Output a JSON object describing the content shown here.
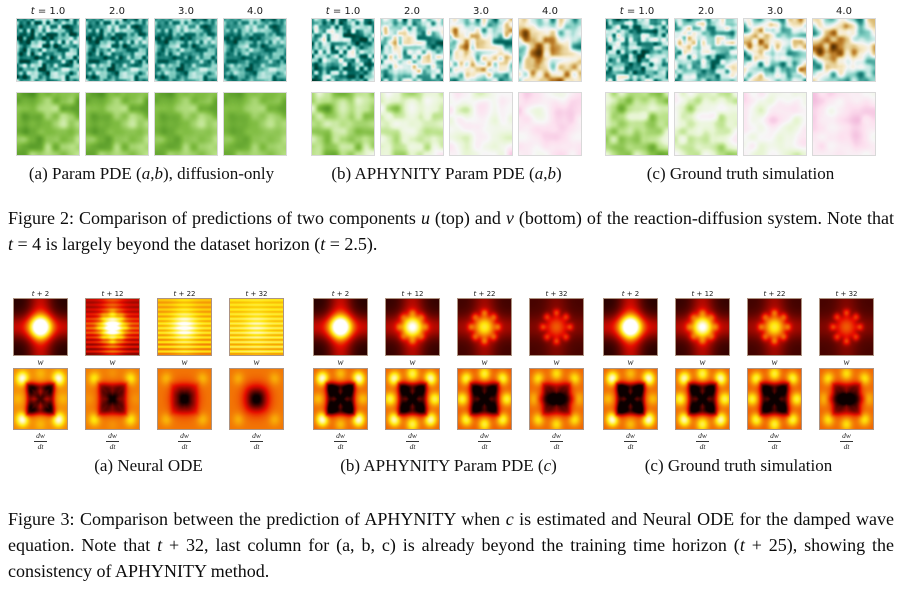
{
  "page": {
    "background": "#ffffff"
  },
  "colormaps": {
    "BrBG": [
      [
        0,
        "#543005"
      ],
      [
        0.1,
        "#8c510a"
      ],
      [
        0.2,
        "#bf812d"
      ],
      [
        0.3,
        "#dfc27d"
      ],
      [
        0.4,
        "#f6e8c3"
      ],
      [
        0.5,
        "#f5f5f5"
      ],
      [
        0.6,
        "#c7eae5"
      ],
      [
        0.7,
        "#80cdc1"
      ],
      [
        0.8,
        "#35978f"
      ],
      [
        0.9,
        "#01665e"
      ],
      [
        1,
        "#003c30"
      ]
    ],
    "PiYG": [
      [
        0,
        "#8e0152"
      ],
      [
        0.1,
        "#c51b7d"
      ],
      [
        0.2,
        "#de77ae"
      ],
      [
        0.3,
        "#f1b6da"
      ],
      [
        0.4,
        "#fde0ef"
      ],
      [
        0.5,
        "#f7f7f7"
      ],
      [
        0.6,
        "#e6f5d0"
      ],
      [
        0.7,
        "#b8e186"
      ],
      [
        0.8,
        "#7fbc41"
      ],
      [
        0.9,
        "#4d9221"
      ],
      [
        1,
        "#276419"
      ]
    ],
    "hot": [
      [
        0,
        "#0b0000"
      ],
      [
        0.365,
        "#e60c00"
      ],
      [
        0.746,
        "#ffe60a"
      ],
      [
        1,
        "#ffffff"
      ]
    ]
  },
  "figure2": {
    "time_labels": [
      [
        {
          "t": "t",
          "i": 1
        },
        {
          "t": " = 1.0"
        }
      ],
      [
        {
          "t": "2.0"
        }
      ],
      [
        {
          "t": "3.0"
        }
      ],
      [
        {
          "t": "4.0"
        }
      ]
    ],
    "row_semantics": [
      "u component (top)",
      "v component (bottom)"
    ],
    "groups": [
      {
        "caption": [
          {
            "t": "(a) Param PDE ("
          },
          {
            "t": "a",
            "i": 1
          },
          {
            "t": ", "
          },
          {
            "t": "b",
            "i": 1
          },
          {
            "t": "), diffusion-only"
          }
        ],
        "tiles_u": [
          {
            "k": "n",
            "c": "BrBG",
            "s": 7,
            "f1": 16,
            "f2": 6,
            "w1": 0.78,
            "m": 0.8,
            "a": 0.3
          },
          {
            "k": "n",
            "c": "BrBG",
            "s": 7,
            "f1": 16,
            "f2": 6,
            "w1": 0.68,
            "m": 0.8,
            "a": 0.28
          },
          {
            "k": "n",
            "c": "BrBG",
            "s": 7,
            "f1": 16,
            "f2": 6,
            "w1": 0.6,
            "m": 0.8,
            "a": 0.26
          },
          {
            "k": "n",
            "c": "BrBG",
            "s": 7,
            "f1": 16,
            "f2": 6,
            "w1": 0.52,
            "m": 0.8,
            "a": 0.25
          }
        ],
        "tiles_v": [
          {
            "k": "n",
            "c": "PiYG",
            "s": 21,
            "f1": 8,
            "f2": 4,
            "w1": 0.5,
            "m": 0.78,
            "a": 0.13
          },
          {
            "k": "n",
            "c": "PiYG",
            "s": 21,
            "f1": 8,
            "f2": 4,
            "w1": 0.45,
            "m": 0.78,
            "a": 0.12
          },
          {
            "k": "n",
            "c": "PiYG",
            "s": 21,
            "f1": 8,
            "f2": 4,
            "w1": 0.4,
            "m": 0.78,
            "a": 0.11
          },
          {
            "k": "n",
            "c": "PiYG",
            "s": 21,
            "f1": 8,
            "f2": 4,
            "w1": 0.35,
            "m": 0.78,
            "a": 0.1
          }
        ]
      },
      {
        "caption": [
          {
            "t": "(b) APHYNITY Param PDE ("
          },
          {
            "t": "a",
            "i": 1
          },
          {
            "t": ", "
          },
          {
            "t": "b",
            "i": 1
          },
          {
            "t": ")"
          }
        ],
        "tiles_u": [
          {
            "k": "n",
            "c": "BrBG",
            "s": 8,
            "f1": 15,
            "f2": 6,
            "w1": 0.7,
            "m": 0.73,
            "a": 0.33
          },
          {
            "k": "n",
            "c": "BrBG",
            "s": 8,
            "f1": 13,
            "f2": 5,
            "w1": 0.55,
            "m": 0.62,
            "a": 0.38
          },
          {
            "k": "n",
            "c": "BrBG",
            "s": 8,
            "f1": 11,
            "f2": 5,
            "w1": 0.45,
            "m": 0.53,
            "a": 0.44
          },
          {
            "k": "n",
            "c": "BrBG",
            "s": 8,
            "f1": 9,
            "f2": 4,
            "w1": 0.35,
            "m": 0.46,
            "a": 0.5
          }
        ],
        "tiles_v": [
          {
            "k": "n",
            "c": "PiYG",
            "s": 22,
            "f1": 8,
            "f2": 4,
            "w1": 0.5,
            "m": 0.7,
            "a": 0.17
          },
          {
            "k": "n",
            "c": "PiYG",
            "s": 22,
            "f1": 8,
            "f2": 4,
            "w1": 0.45,
            "m": 0.6,
            "a": 0.18
          },
          {
            "k": "n",
            "c": "PiYG",
            "s": 22,
            "f1": 7,
            "f2": 4,
            "w1": 0.4,
            "m": 0.5,
            "a": 0.16
          },
          {
            "k": "n",
            "c": "PiYG",
            "s": 22,
            "f1": 7,
            "f2": 3,
            "w1": 0.35,
            "m": 0.43,
            "a": 0.14
          }
        ]
      },
      {
        "caption": [
          {
            "t": "(c) Ground truth simulation"
          }
        ],
        "tiles_u": [
          {
            "k": "n",
            "c": "BrBG",
            "s": 9,
            "f1": 15,
            "f2": 6,
            "w1": 0.7,
            "m": 0.73,
            "a": 0.33
          },
          {
            "k": "n",
            "c": "BrBG",
            "s": 9,
            "f1": 13,
            "f2": 5,
            "w1": 0.55,
            "m": 0.62,
            "a": 0.38
          },
          {
            "k": "n",
            "c": "BrBG",
            "s": 9,
            "f1": 11,
            "f2": 5,
            "w1": 0.45,
            "m": 0.53,
            "a": 0.44
          },
          {
            "k": "n",
            "c": "BrBG",
            "s": 9,
            "f1": 9,
            "f2": 4,
            "w1": 0.35,
            "m": 0.46,
            "a": 0.5
          }
        ],
        "tiles_v": [
          {
            "k": "n",
            "c": "PiYG",
            "s": 23,
            "f1": 8,
            "f2": 4,
            "w1": 0.5,
            "m": 0.7,
            "a": 0.17
          },
          {
            "k": "n",
            "c": "PiYG",
            "s": 23,
            "f1": 8,
            "f2": 4,
            "w1": 0.45,
            "m": 0.6,
            "a": 0.18
          },
          {
            "k": "n",
            "c": "PiYG",
            "s": 23,
            "f1": 7,
            "f2": 4,
            "w1": 0.4,
            "m": 0.5,
            "a": 0.16
          },
          {
            "k": "n",
            "c": "PiYG",
            "s": 23,
            "f1": 7,
            "f2": 3,
            "w1": 0.35,
            "m": 0.43,
            "a": 0.14
          }
        ]
      }
    ],
    "caption": [
      {
        "t": "Figure 2: Comparison of predictions of two components "
      },
      {
        "t": "u",
        "i": 1
      },
      {
        "t": " (top) and "
      },
      {
        "t": "v",
        "i": 1
      },
      {
        "t": " (bottom) of the reaction-diffusion system. Note that "
      },
      {
        "t": "t",
        "i": 1
      },
      {
        "t": " = 4 is largely beyond the dataset horizon ("
      },
      {
        "t": "t",
        "i": 1
      },
      {
        "t": " = 2.5)."
      }
    ]
  },
  "figure3": {
    "time_labels": [
      [
        {
          "t": "t",
          "i": 1
        },
        {
          "t": " + 2"
        }
      ],
      [
        {
          "t": "t",
          "i": 1
        },
        {
          "t": " + 12"
        }
      ],
      [
        {
          "t": "t",
          "i": 1
        },
        {
          "t": " + 22"
        }
      ],
      [
        {
          "t": "t",
          "i": 1
        },
        {
          "t": " + 32"
        }
      ]
    ],
    "row_label_w": "w",
    "frac_num": "dw",
    "frac_den": "dt",
    "groups": [
      {
        "caption": [
          {
            "t": "(a) Neural ODE"
          }
        ],
        "tiles_w": [
          {
            "k": "w",
            "b": 0.05,
            "bl": 0.75,
            "cr": 0.5,
            "p": 0,
            "st": 0
          },
          {
            "k": "w",
            "b": 0.28,
            "bl": 0.5,
            "cr": 0.36,
            "p": 0.08,
            "st": 0.1
          },
          {
            "k": "w",
            "b": 0.65,
            "bl": 0.25,
            "cr": 0.12,
            "p": 0,
            "st": 0.12
          },
          {
            "k": "w",
            "b": 0.72,
            "bl": 0.1,
            "cr": 0.05,
            "p": 0,
            "st": 0.13
          }
        ],
        "tiles_d": [
          {
            "k": "d",
            "b": 0.58,
            "ca": 0.45,
            "ea": 0.08,
            "xa": 0.5,
            "ra": 0.32,
            "ba": 0,
            "ha": 0
          },
          {
            "k": "d",
            "b": 0.56,
            "ca": 0.22,
            "ea": 0.04,
            "xa": 0.28,
            "ra": 0.18,
            "ba": 0.3,
            "ha": 0
          },
          {
            "k": "d",
            "b": 0.55,
            "ca": 0.12,
            "ea": 0,
            "xa": 0.1,
            "ra": 0.06,
            "ba": 0.5,
            "ha": 0
          },
          {
            "k": "d",
            "b": 0.55,
            "ca": 0.1,
            "ea": 0,
            "xa": 0.04,
            "ra": 0,
            "ba": 0.55,
            "ha": 0
          }
        ]
      },
      {
        "caption": [
          {
            "t": "(b) APHYNITY Param PDE ("
          },
          {
            "t": "c",
            "i": 1
          },
          {
            "t": ")"
          }
        ],
        "tiles_w": [
          {
            "k": "w",
            "b": 0.05,
            "bl": 0.75,
            "cr": 0.5,
            "p": 0,
            "st": 0
          },
          {
            "k": "w",
            "b": 0.07,
            "bl": 0.55,
            "cr": 0.4,
            "p": 0.12,
            "st": 0
          },
          {
            "k": "w",
            "b": 0.09,
            "bl": 0.4,
            "cr": 0.3,
            "p": 0.18,
            "st": 0
          },
          {
            "k": "w",
            "b": 0.1,
            "bl": 0.22,
            "cr": 0.18,
            "p": 0.2,
            "st": 0
          }
        ],
        "tiles_d": [
          {
            "k": "d",
            "b": 0.52,
            "ca": 0.5,
            "ea": 0.15,
            "xa": 0.55,
            "ra": 0.35,
            "ba": 0.05,
            "ha": 0
          },
          {
            "k": "d",
            "b": 0.52,
            "ca": 0.45,
            "ea": 0.3,
            "xa": 0.5,
            "ra": 0.3,
            "ba": 0.1,
            "ha": 0
          },
          {
            "k": "d",
            "b": 0.5,
            "ca": 0.35,
            "ea": 0.3,
            "xa": 0.45,
            "ra": 0.28,
            "ba": 0.15,
            "ha": 0
          },
          {
            "k": "d",
            "b": 0.52,
            "ca": 0.25,
            "ea": 0.22,
            "xa": 0.3,
            "ra": 0.15,
            "ba": 0.2,
            "ha": 0.25
          }
        ]
      },
      {
        "caption": [
          {
            "t": "(c) Ground truth simulation"
          }
        ],
        "tiles_w": [
          {
            "k": "w",
            "b": 0.05,
            "bl": 0.75,
            "cr": 0.5,
            "p": 0,
            "st": 0,
            "s": 2
          },
          {
            "k": "w",
            "b": 0.07,
            "bl": 0.55,
            "cr": 0.4,
            "p": 0.12,
            "st": 0,
            "s": 2
          },
          {
            "k": "w",
            "b": 0.09,
            "bl": 0.4,
            "cr": 0.3,
            "p": 0.18,
            "st": 0,
            "s": 2
          },
          {
            "k": "w",
            "b": 0.1,
            "bl": 0.22,
            "cr": 0.18,
            "p": 0.2,
            "st": 0,
            "s": 2
          }
        ],
        "tiles_d": [
          {
            "k": "d",
            "b": 0.52,
            "ca": 0.5,
            "ea": 0.15,
            "xa": 0.55,
            "ra": 0.35,
            "ba": 0.05,
            "ha": 0,
            "s": 2
          },
          {
            "k": "d",
            "b": 0.52,
            "ca": 0.45,
            "ea": 0.3,
            "xa": 0.5,
            "ra": 0.3,
            "ba": 0.1,
            "ha": 0,
            "s": 2
          },
          {
            "k": "d",
            "b": 0.5,
            "ca": 0.35,
            "ea": 0.3,
            "xa": 0.45,
            "ra": 0.28,
            "ba": 0.15,
            "ha": 0,
            "s": 2
          },
          {
            "k": "d",
            "b": 0.52,
            "ca": 0.25,
            "ea": 0.22,
            "xa": 0.3,
            "ra": 0.15,
            "ba": 0.2,
            "ha": 0.25,
            "s": 2
          }
        ]
      }
    ],
    "caption": [
      {
        "t": "Figure 3: Comparison between the prediction of APHYNITY when "
      },
      {
        "t": "c",
        "i": 1
      },
      {
        "t": " is estimated and Neural ODE for the damped wave equation. Note that "
      },
      {
        "t": "t",
        "i": 1
      },
      {
        "t": " + 32, last column for (a, b, c) is already beyond the training time horizon ("
      },
      {
        "t": "t",
        "i": 1
      },
      {
        "t": " + 25), showing the consistency of APHYNITY method."
      }
    ]
  }
}
